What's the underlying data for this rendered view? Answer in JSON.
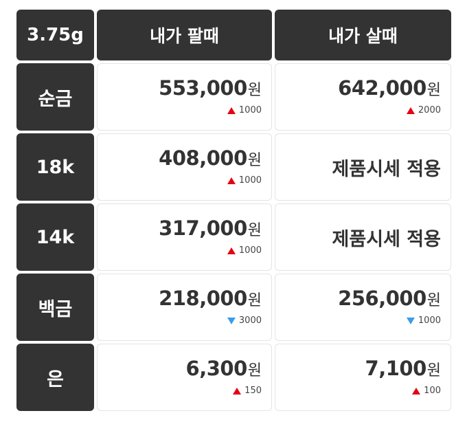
{
  "header": {
    "weight": "3.75g",
    "sell_label": "내가 팔때",
    "buy_label": "내가 살때"
  },
  "currency_unit": "원",
  "colors": {
    "header_bg": "#333333",
    "up": "#e60012",
    "down": "#3d9bea"
  },
  "rows": [
    {
      "label": "순금",
      "sell": {
        "price": "553,000",
        "direction": "up",
        "change": "1000"
      },
      "buy": {
        "price": "642,000",
        "direction": "up",
        "change": "2000"
      }
    },
    {
      "label": "18k",
      "sell": {
        "price": "408,000",
        "direction": "up",
        "change": "1000"
      },
      "buy": {
        "note": "제품시세 적용"
      }
    },
    {
      "label": "14k",
      "sell": {
        "price": "317,000",
        "direction": "up",
        "change": "1000"
      },
      "buy": {
        "note": "제품시세 적용"
      }
    },
    {
      "label": "백금",
      "sell": {
        "price": "218,000",
        "direction": "down",
        "change": "3000"
      },
      "buy": {
        "price": "256,000",
        "direction": "down",
        "change": "1000"
      }
    },
    {
      "label": "은",
      "sell": {
        "price": "6,300",
        "direction": "up",
        "change": "150"
      },
      "buy": {
        "price": "7,100",
        "direction": "up",
        "change": "100"
      }
    }
  ]
}
